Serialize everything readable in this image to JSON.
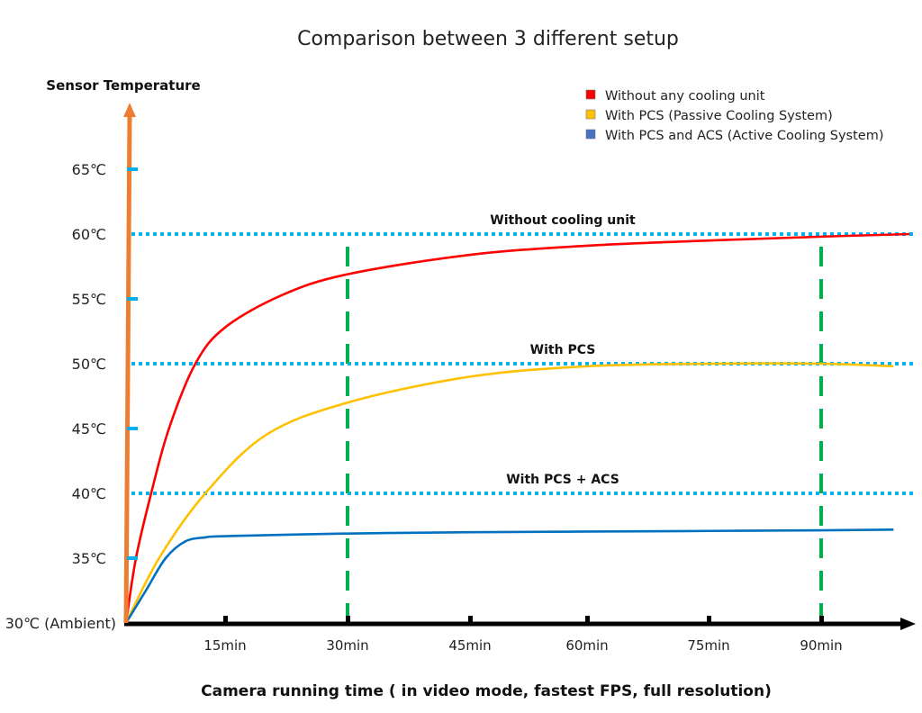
{
  "chart_data": {
    "type": "line",
    "title": "Comparison between 3 different setup",
    "ylabel": "Sensor Temperature",
    "xlabel": "Camera running time ( in video mode, fastest FPS, full resolution)",
    "y_unit": "°C",
    "ylim": [
      30,
      68
    ],
    "xlim": [
      0,
      101
    ],
    "y_ticks": [
      {
        "value": 30,
        "label": "30℃ (Ambient)"
      },
      {
        "value": 35,
        "label": "35℃"
      },
      {
        "value": 40,
        "label": "40℃"
      },
      {
        "value": 45,
        "label": "45℃"
      },
      {
        "value": 50,
        "label": "50℃"
      },
      {
        "value": 55,
        "label": "55℃"
      },
      {
        "value": 60,
        "label": "60℃"
      },
      {
        "value": 65,
        "label": "65℃"
      }
    ],
    "x_ticks": [
      {
        "value": 15,
        "label": "15min"
      },
      {
        "value": 30,
        "label": "30min"
      },
      {
        "value": 45,
        "label": "45min"
      },
      {
        "value": 60,
        "label": "60min"
      },
      {
        "value": 75,
        "label": "75min"
      },
      {
        "value": 90,
        "label": "90min"
      }
    ],
    "legend_position": "top-right",
    "series": [
      {
        "name": "Without any cooling unit",
        "color": "#ff0000",
        "x": [
          0,
          1.5,
          3.8,
          6.5,
          10.5,
          15,
          22,
          30,
          45,
          60,
          75,
          90,
          101
        ],
        "y": [
          30,
          35,
          40,
          45,
          50,
          52.8,
          55.3,
          56.9,
          58.4,
          59.1,
          59.5,
          59.8,
          60
        ]
      },
      {
        "name": "With PCS (Passive Cooling System)",
        "color": "#ffc000",
        "x": [
          0,
          5,
          12,
          20,
          30,
          45,
          60,
          75,
          90,
          99
        ],
        "y": [
          30,
          35,
          40,
          44.5,
          47,
          49,
          49.8,
          50,
          50,
          49.8
        ]
      },
      {
        "name": "With PCS and ACS (Active Cooling System)",
        "color": "#0070c0",
        "x": [
          0,
          3,
          6,
          9,
          12,
          15,
          30,
          45,
          60,
          75,
          90,
          99
        ],
        "y": [
          30,
          32.5,
          35,
          36.3,
          36.6,
          36.7,
          36.9,
          37,
          37.05,
          37.1,
          37.15,
          37.2
        ]
      }
    ],
    "reference_lines": [
      {
        "axis": "y",
        "value": 60,
        "label": "Without cooling unit",
        "color": "#00b0f0",
        "style": "dotted"
      },
      {
        "axis": "y",
        "value": 50,
        "label": "With PCS",
        "color": "#00b0f0",
        "style": "dotted"
      },
      {
        "axis": "y",
        "value": 40,
        "label": "With PCS + ACS",
        "color": "#00b0f0",
        "style": "dotted"
      },
      {
        "axis": "x",
        "value": 30,
        "color": "#00b050",
        "style": "dashed"
      },
      {
        "axis": "x",
        "value": 90,
        "color": "#00b050",
        "style": "dashed"
      }
    ],
    "axis_colors": {
      "y_axis": "#ed7d31",
      "x_axis": "#000000",
      "y_tick_marks": "#00b0f0"
    },
    "legend_swatches": [
      "#ff0000",
      "#ffc000",
      "#4472c4"
    ],
    "grid": false
  }
}
